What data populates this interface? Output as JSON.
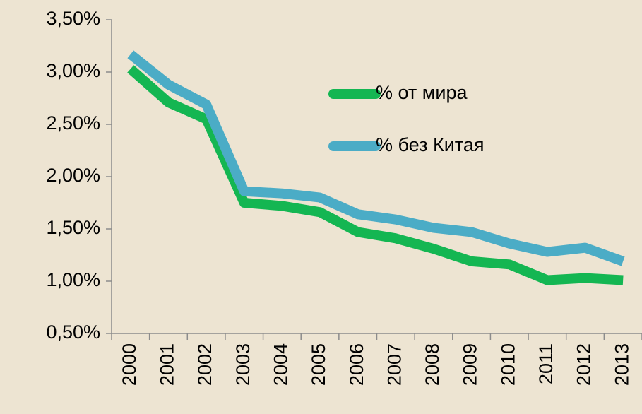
{
  "chart_data": {
    "type": "line",
    "categories": [
      "2000",
      "2001",
      "2002",
      "2003",
      "2004",
      "2005",
      "2006",
      "2007",
      "2008",
      "2009",
      "2010",
      "2011",
      "2012",
      "2013"
    ],
    "series": [
      {
        "name": "% от мира",
        "color": "#14b652",
        "values": [
          3.03,
          2.71,
          2.55,
          1.75,
          1.72,
          1.66,
          1.47,
          1.41,
          1.31,
          1.19,
          1.16,
          1.01,
          1.03,
          1.01
        ]
      },
      {
        "name": "% без Китая",
        "color": "#4bacc6",
        "values": [
          3.17,
          2.88,
          2.69,
          1.86,
          1.84,
          1.8,
          1.64,
          1.59,
          1.51,
          1.47,
          1.36,
          1.28,
          1.32,
          1.19
        ]
      }
    ],
    "ylim": [
      0.5,
      3.5
    ],
    "yticks": [
      {
        "value": 0.5,
        "label": "0,50%"
      },
      {
        "value": 1.0,
        "label": "1,00%"
      },
      {
        "value": 1.5,
        "label": "1,50%"
      },
      {
        "value": 2.0,
        "label": "2,00%"
      },
      {
        "value": 2.5,
        "label": "2,50%"
      },
      {
        "value": 3.0,
        "label": "3,00%"
      },
      {
        "value": 3.5,
        "label": "3,50%"
      }
    ],
    "grid": false,
    "legend": "center-right"
  }
}
